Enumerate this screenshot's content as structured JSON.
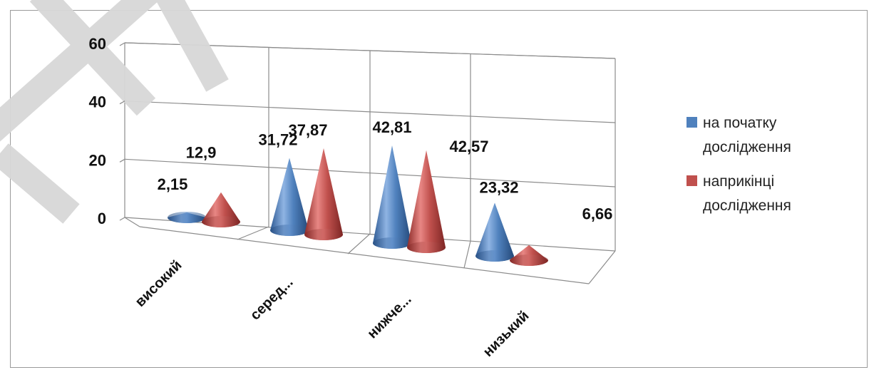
{
  "chart_data": {
    "type": "bar",
    "style": "3d-cone",
    "categories": [
      "високий",
      "серед...",
      "нижче...",
      "низький"
    ],
    "series": [
      {
        "name": "на початку дослідження",
        "color": "#4f81bd",
        "values": [
          2.15,
          31.72,
          42.81,
          23.32
        ],
        "labels": [
          "2,15",
          "31,72",
          "42,81",
          "23,32"
        ]
      },
      {
        "name": "наприкінці дослідження",
        "color": "#c0504d",
        "values": [
          12.9,
          37.87,
          42.57,
          6.66
        ],
        "labels": [
          "12,9",
          "37,87",
          "42,57",
          "6,66"
        ]
      }
    ],
    "y_ticks": [
      "0",
      "20",
      "40",
      "60"
    ],
    "ylim": [
      0,
      60
    ],
    "grid": true,
    "legend_position": "right",
    "legend": {
      "item1_line1": "на початку",
      "item1_line2": "дослідження",
      "item2_line1": "наприкінці",
      "item2_line2": "дослідження"
    }
  }
}
